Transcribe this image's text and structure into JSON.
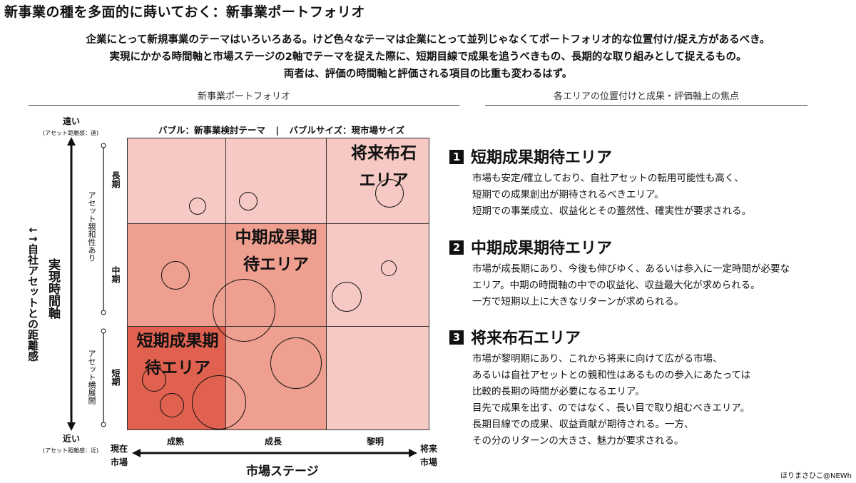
{
  "title": "新事業の種を多面的に蒔いておく：新事業ポートフォリオ",
  "intro": [
    "企業にとって新規事業のテーマはいろいろある。けど色々なテーマは企業にとって並列じゃなくてポートフォリオ的な位置付け/捉え方があるべき。",
    "実現にかかる時間軸と市場ステージの2軸でテーマを捉えた際に、短期目線で成果を追うべきもの、長期的な取り組みとして捉えるもの。",
    "両者は、評価の時間軸と評価される項目の比重も変わるはず。"
  ],
  "left_section_title": "新事業ポートフォリオ",
  "right_section_title": "各エリアの位置付けと成果・評価軸上の焦点",
  "legend": {
    "bubble": "バブル：新事業検討テーマ",
    "separator": "|",
    "size": "バブルサイズ：現市場サイズ"
  },
  "y_axis": {
    "top": "遠い",
    "top_sub": "(アセット距離感：遠)",
    "bottom": "近い",
    "bottom_sub": "(アセット距離感：近)",
    "title": "実現時間軸",
    "subtitle": "自社アセットとの距離感",
    "subtitle_mark": "↓↑",
    "rows": [
      "長期",
      "中期",
      "短期"
    ],
    "bracket_top": "アセット親和性あり",
    "bracket_bottom": "アセット横展開"
  },
  "x_axis": {
    "columns": [
      "成熟",
      "成長",
      "黎明"
    ],
    "left": "現在市場",
    "right": "将来市場",
    "title": "市場ステージ"
  },
  "colors": {
    "dark": "#e06150",
    "medium": "#ef9f8f",
    "light": "#f6c9c4"
  },
  "areas": {
    "short": "短期成果期待エリア",
    "mid": "中期成果期待エリア",
    "long": "将来布石エリア"
  },
  "descriptions": [
    {
      "num": "1",
      "title": "短期成果期待エリア",
      "lines": [
        "市場も安定/確立しており、自社アセットの転用可能性も高く、",
        "短期での成果創出が期待されるべきエリア。",
        "短期での事業成立、収益化とその蓋然性、確実性が要求される。"
      ]
    },
    {
      "num": "2",
      "title": "中期成果期待エリア",
      "lines": [
        "市場が成長期にあり、今後も伸びゆく、あるいは参入に一定時間が必要な",
        "エリア。中期の時間軸の中での収益化、収益最大化が求められる。",
        "一方で短期以上に大きなリターンが求められる。"
      ]
    },
    {
      "num": "3",
      "title": "将来布石エリア",
      "lines": [
        "市場が黎明期にあり、これから将来に向けて広がる市場、",
        "あるいは自社アセットとの親和性はあるものの参入にあたっては",
        "比較的長期の時間が必要になるエリア。",
        "目先で成果を出す、のではなく、長い目で取り組むべきエリア。",
        "長期目線での成果、収益貢献が期待される。一方、",
        "その分のリターンの大きさ、魅力が要求される。"
      ]
    }
  ],
  "credit": "ほりまさひこ@NEWh"
}
